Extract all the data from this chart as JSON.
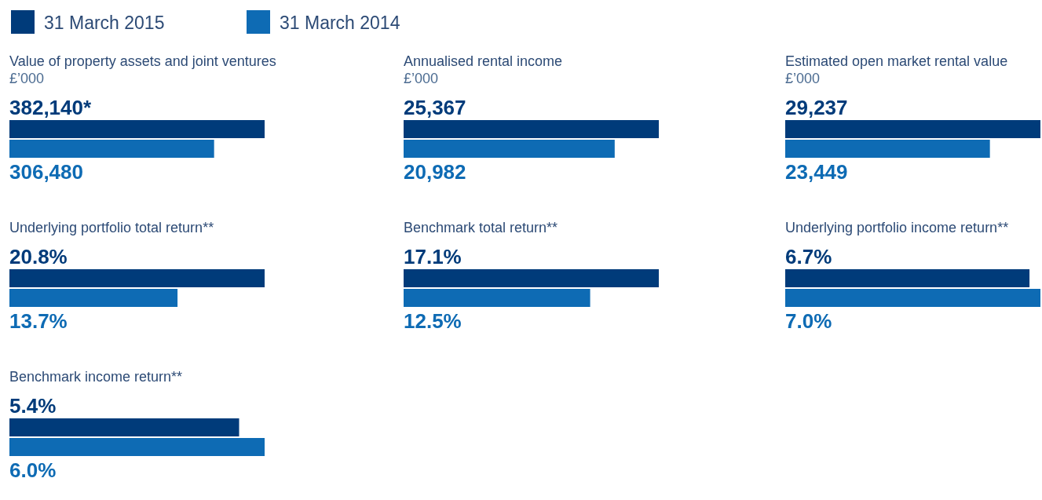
{
  "chart_data": [
    {
      "type": "bar",
      "orientation": "horizontal",
      "title": "Value of property assets and joint ventures",
      "subtitle": "£’000",
      "categories": [
        null
      ],
      "legend": "top",
      "series": [
        {
          "name": "31 March 2015",
          "color": "#003b7a",
          "values": [
            382140
          ],
          "value_labels": [
            "382,140*"
          ]
        },
        {
          "name": "31 March 2014",
          "color": "#0e6bb4",
          "values": [
            306480
          ],
          "value_labels": [
            "306,480"
          ]
        }
      ]
    },
    {
      "type": "bar",
      "orientation": "horizontal",
      "title": "Annualised rental income",
      "subtitle": "£’000",
      "categories": [
        null
      ],
      "series": [
        {
          "color": "#003b7a",
          "values": [
            25367
          ],
          "value_labels": [
            "25,367"
          ]
        },
        {
          "color": "#0e6bb4",
          "values": [
            20982
          ],
          "value_labels": [
            "20,982"
          ]
        }
      ]
    },
    {
      "type": "bar",
      "orientation": "horizontal",
      "title": "Estimated open market rental value",
      "subtitle": "£’000",
      "categories": [
        null
      ],
      "series": [
        {
          "color": "#003b7a",
          "values": [
            29237
          ],
          "value_labels": [
            "29,237"
          ]
        },
        {
          "color": "#0e6bb4",
          "values": [
            23449
          ],
          "value_labels": [
            "23,449"
          ]
        }
      ]
    },
    {
      "type": "bar",
      "orientation": "horizontal",
      "title": "Underlying portfolio total return**",
      "categories": [
        null
      ],
      "series": [
        {
          "color": "#003b7a",
          "values": [
            20.8
          ],
          "value_labels": [
            "20.8%"
          ]
        },
        {
          "color": "#0e6bb4",
          "values": [
            13.7
          ],
          "value_labels": [
            "13.7%"
          ]
        }
      ]
    },
    {
      "type": "bar",
      "orientation": "horizontal",
      "title": "Benchmark total return**",
      "categories": [
        null
      ],
      "series": [
        {
          "color": "#003b7a",
          "values": [
            17.1
          ],
          "value_labels": [
            "17.1%"
          ]
        },
        {
          "color": "#0e6bb4",
          "values": [
            12.5
          ],
          "value_labels": [
            "12.5%"
          ]
        }
      ]
    },
    {
      "type": "bar",
      "orientation": "horizontal",
      "title": "Underlying portfolio income return**",
      "categories": [
        null
      ],
      "series": [
        {
          "color": "#003b7a",
          "values": [
            6.7
          ],
          "value_labels": [
            "6.7%"
          ]
        },
        {
          "color": "#0e6bb4",
          "values": [
            7.0
          ],
          "value_labels": [
            "7.0%"
          ]
        }
      ]
    },
    {
      "type": "bar",
      "orientation": "horizontal",
      "title": "Benchmark income return**",
      "categories": [
        null
      ],
      "series": [
        {
          "color": "#003b7a",
          "values": [
            5.4
          ],
          "value_labels": [
            "5.4%"
          ]
        },
        {
          "color": "#0e6bb4",
          "values": [
            6.0
          ],
          "value_labels": [
            "6.0%"
          ]
        }
      ]
    }
  ]
}
